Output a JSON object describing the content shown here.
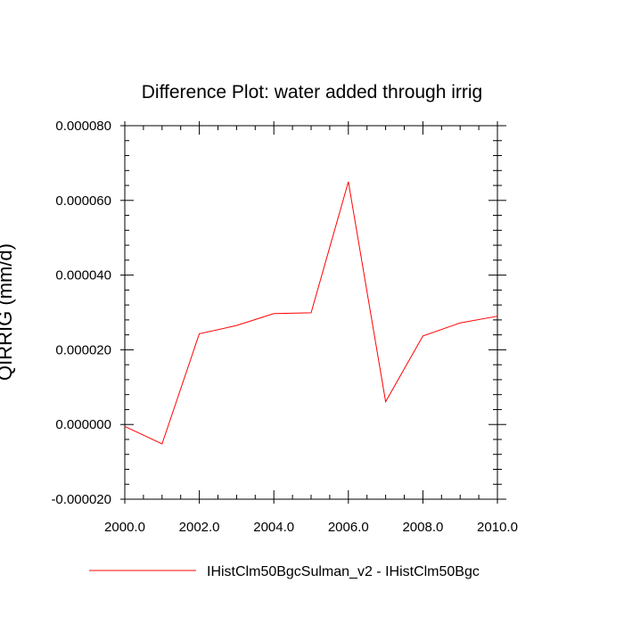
{
  "chart_data": {
    "type": "line",
    "title": "Difference Plot: water added through irrig",
    "xlabel": "",
    "ylabel": "QIRRIG (mm/d)",
    "xlim": [
      2000.0,
      2010.0
    ],
    "ylim": [
      -2e-05,
      8e-05
    ],
    "xticks": [
      2000,
      2002,
      2004,
      2006,
      2008,
      2010
    ],
    "xtick_labels": [
      "2000.0",
      "2002.0",
      "2004.0",
      "2006.0",
      "2008.0",
      "2010.0"
    ],
    "yticks": [
      -2e-05,
      0,
      2e-05,
      4e-05,
      6e-05,
      8e-05
    ],
    "ytick_labels": [
      "-0.000020",
      "0.000000",
      "0.000020",
      "0.000040",
      "0.000060",
      "0.000080"
    ],
    "legend_position": "bottom",
    "grid": false,
    "series": [
      {
        "name": "IHistClm50BgcSulman_v2 - IHistClm50Bgc",
        "color": "#ff0000",
        "x": [
          2000,
          2001,
          2002,
          2003,
          2004,
          2005,
          2006,
          2007,
          2008,
          2009,
          2010
        ],
        "y": [
          -5e-07,
          -5.2e-06,
          2.43e-05,
          2.65e-05,
          2.97e-05,
          2.99e-05,
          6.5e-05,
          6.1e-06,
          2.37e-05,
          2.72e-05,
          2.9e-05
        ]
      }
    ]
  }
}
